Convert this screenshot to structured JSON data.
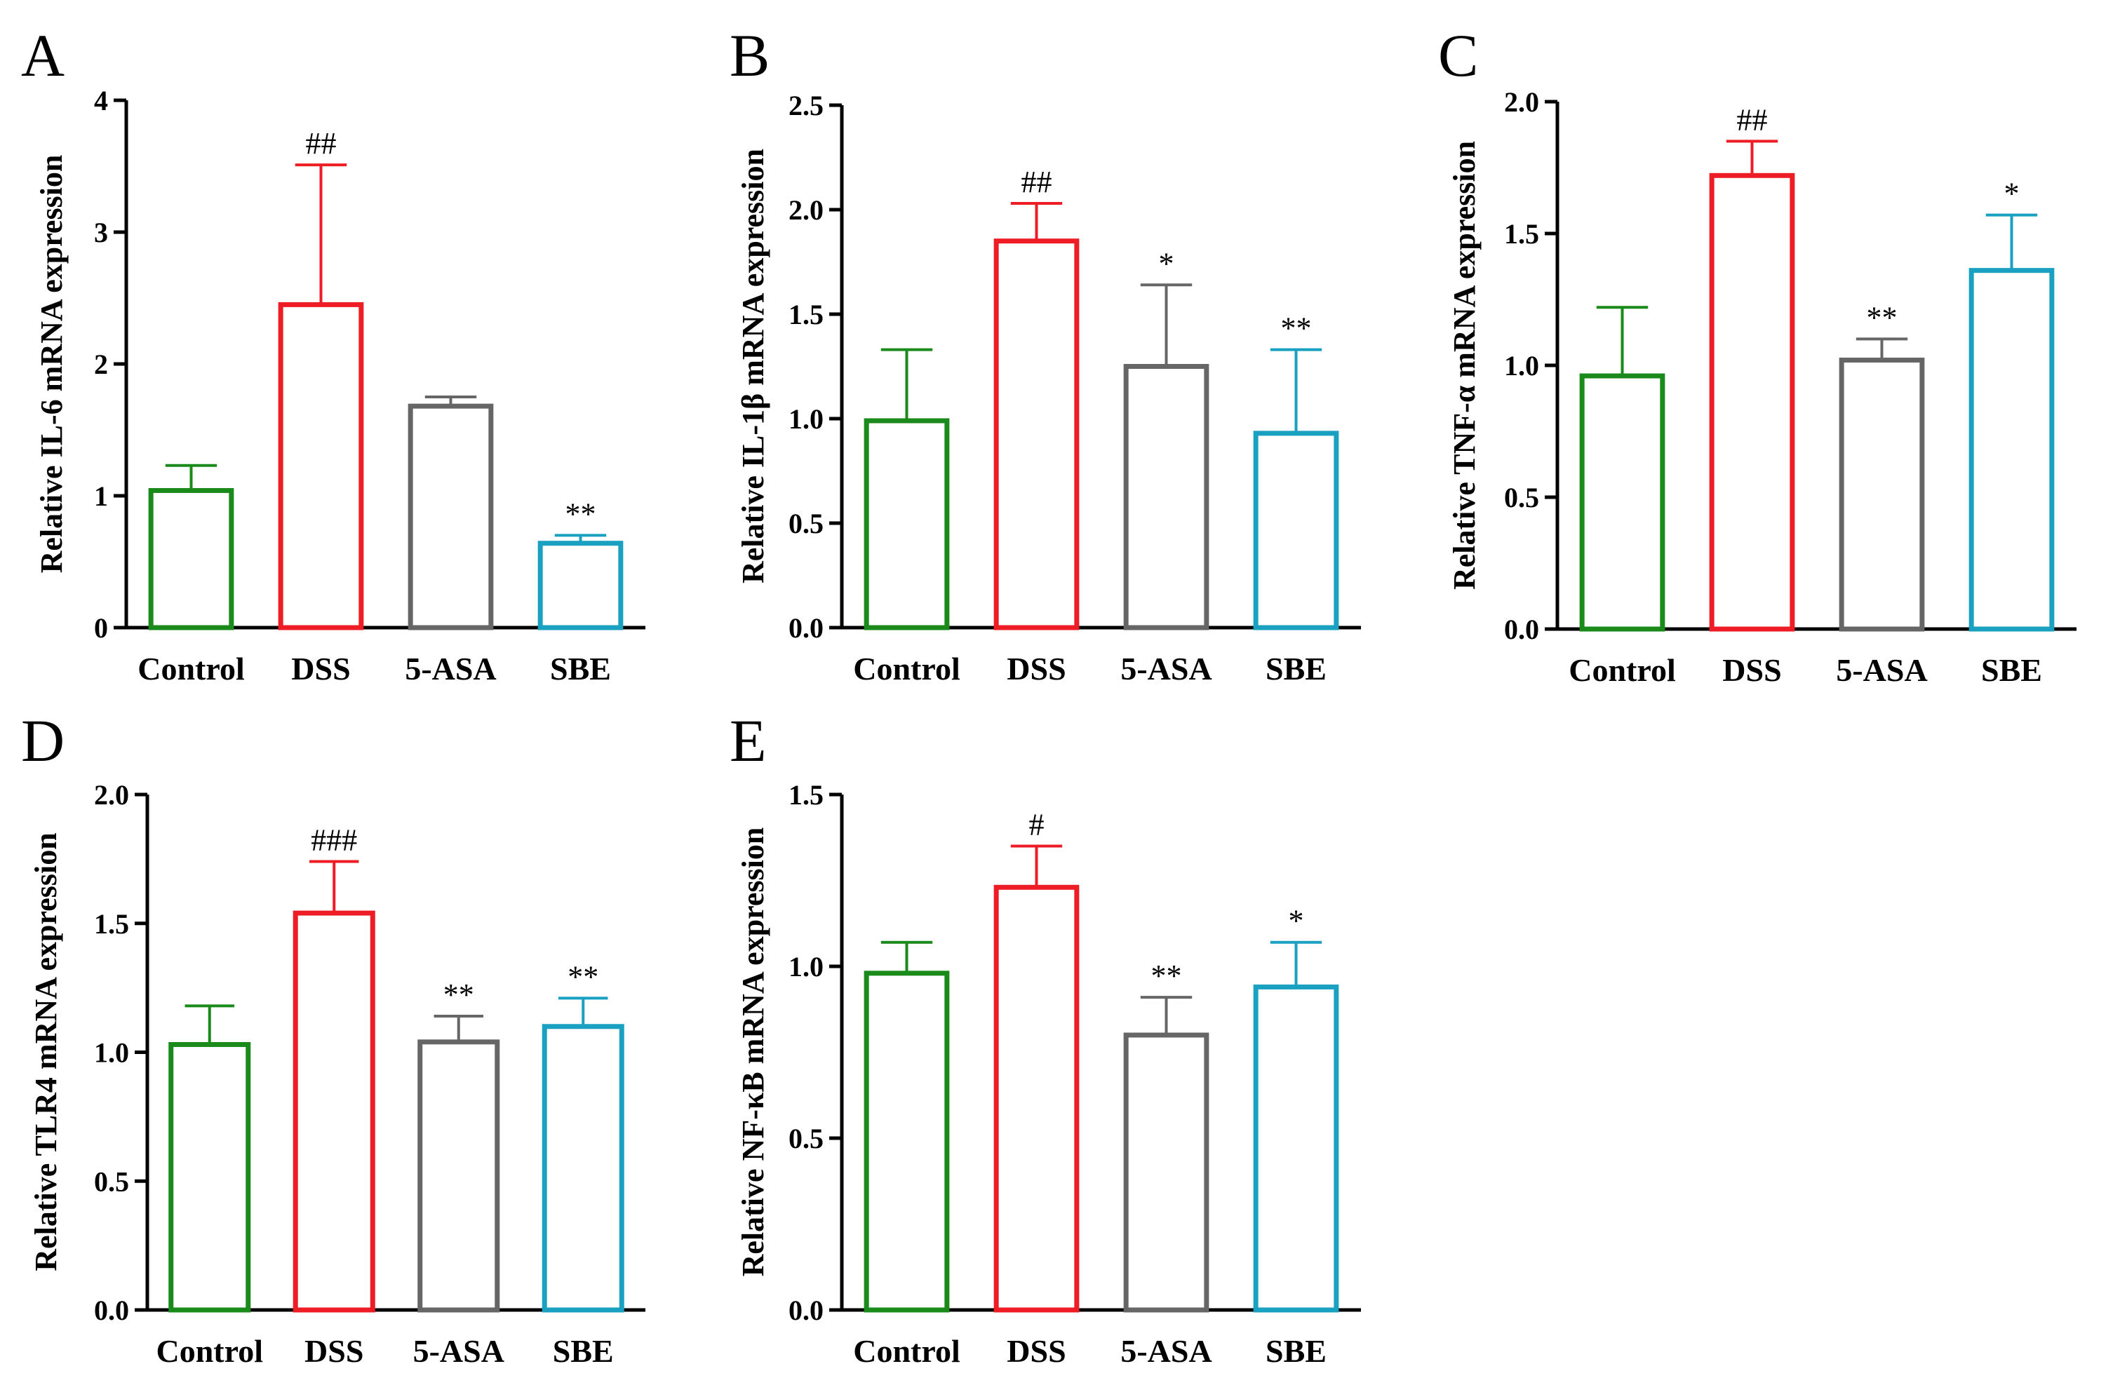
{
  "chart_data": [
    {
      "panel": "A",
      "type": "bar",
      "ylabel": "Relative IL-6 mRNA expression",
      "ylim": [
        0,
        4
      ],
      "yticks": [
        "0",
        "1",
        "2",
        "3",
        "4"
      ],
      "categories": [
        "Control",
        "DSS",
        "5-ASA",
        "SBE"
      ],
      "values": [
        1.04,
        2.45,
        1.68,
        0.64
      ],
      "errors": [
        0.19,
        1.06,
        0.07,
        0.06
      ],
      "significance": [
        "",
        "##",
        "",
        "**"
      ],
      "colors": [
        "#1a8a1a",
        "#ee1c24",
        "#666666",
        "#1aa0c0"
      ]
    },
    {
      "panel": "B",
      "type": "bar",
      "ylabel": "Relative IL-1β mRNA expression",
      "ylim": [
        0,
        2.5
      ],
      "yticks": [
        "0.0",
        "0.5",
        "1.0",
        "1.5",
        "2.0",
        "2.5"
      ],
      "categories": [
        "Control",
        "DSS",
        "5-ASA",
        "SBE"
      ],
      "values": [
        0.99,
        1.85,
        1.25,
        0.93
      ],
      "errors": [
        0.34,
        0.18,
        0.39,
        0.4
      ],
      "significance": [
        "",
        "##",
        "*",
        "**"
      ],
      "colors": [
        "#1a8a1a",
        "#ee1c24",
        "#666666",
        "#1aa0c0"
      ]
    },
    {
      "panel": "C",
      "type": "bar",
      "ylabel": "Relative TNF-α mRNA expression",
      "ylim": [
        0,
        2.0
      ],
      "yticks": [
        "0.0",
        "0.5",
        "1.0",
        "1.5",
        "2.0"
      ],
      "categories": [
        "Control",
        "DSS",
        "5-ASA",
        "SBE"
      ],
      "values": [
        0.96,
        1.72,
        1.02,
        1.36
      ],
      "errors": [
        0.26,
        0.13,
        0.08,
        0.21
      ],
      "significance": [
        "",
        "##",
        "**",
        "*"
      ],
      "colors": [
        "#1a8a1a",
        "#ee1c24",
        "#666666",
        "#1aa0c0"
      ]
    },
    {
      "panel": "D",
      "type": "bar",
      "ylabel": "Relative TLR4 mRNA expression",
      "ylim": [
        0,
        2.0
      ],
      "yticks": [
        "0.0",
        "0.5",
        "1.0",
        "1.5",
        "2.0"
      ],
      "categories": [
        "Control",
        "DSS",
        "5-ASA",
        "SBE"
      ],
      "values": [
        1.03,
        1.54,
        1.04,
        1.1
      ],
      "errors": [
        0.15,
        0.2,
        0.1,
        0.11
      ],
      "significance": [
        "",
        "###",
        "**",
        "**"
      ],
      "colors": [
        "#1a8a1a",
        "#ee1c24",
        "#666666",
        "#1aa0c0"
      ]
    },
    {
      "panel": "E",
      "type": "bar",
      "ylabel": "Relative NF-κB mRNA expression",
      "ylim": [
        0,
        1.5
      ],
      "yticks": [
        "0.0",
        "0.5",
        "1.0",
        "1.5"
      ],
      "categories": [
        "Control",
        "DSS",
        "5-ASA",
        "SBE"
      ],
      "values": [
        0.98,
        1.23,
        0.8,
        0.94
      ],
      "errors": [
        0.09,
        0.12,
        0.11,
        0.13
      ],
      "significance": [
        "",
        "#",
        "**",
        "*"
      ],
      "colors": [
        "#1a8a1a",
        "#ee1c24",
        "#666666",
        "#1aa0c0"
      ]
    }
  ]
}
